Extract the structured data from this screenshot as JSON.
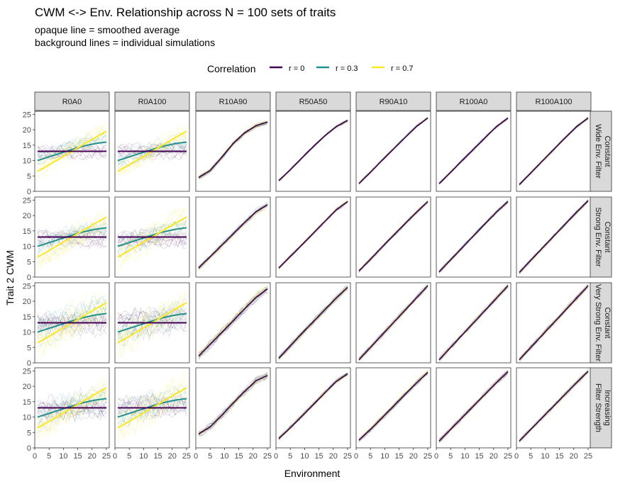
{
  "chart_data": {
    "type": "line",
    "title": "CWM <-> Env. Relationship across N = 100 sets of traits",
    "subtitle_lines": [
      "opaque line = smoothed average",
      "background lines = individual simulations"
    ],
    "xlabel": "Environment",
    "ylabel": "Trait 2 CWM",
    "xlim": [
      0,
      26
    ],
    "ylim": [
      0,
      26
    ],
    "x_ticks": [
      0,
      5,
      10,
      15,
      20,
      25
    ],
    "y_ticks": [
      0,
      5,
      10,
      15,
      20,
      25
    ],
    "legend": {
      "title": "Correlation",
      "position": "top",
      "entries": [
        {
          "label": "r = 0",
          "color": "#440154"
        },
        {
          "label": "r = 0.3",
          "color": "#21908C"
        },
        {
          "label": "r = 0.7",
          "color": "#FDE725"
        }
      ]
    },
    "columns": [
      "R0A0",
      "R0A100",
      "R10A90",
      "R50A50",
      "R90A10",
      "R100A0",
      "R100A100"
    ],
    "rows": [
      [
        "Constant",
        "Wide Env. Filter"
      ],
      [
        "Constant",
        "Strong Env. Filter"
      ],
      [
        "Constant",
        "Very Strong Env. Filter"
      ],
      [
        "Increasing",
        "Filter Strength"
      ]
    ],
    "grid": false,
    "x": [
      1,
      5,
      9,
      13,
      17,
      21,
      25
    ],
    "random_panels": {
      "r = 0": [
        13,
        13,
        13,
        13,
        13,
        13,
        13
      ],
      "r = 0.3": [
        10,
        11.2,
        12.4,
        13.6,
        14.7,
        15.5,
        16
      ],
      "r = 0.7": [
        6.5,
        8.6,
        10.8,
        13,
        15.2,
        17.4,
        19.5
      ]
    },
    "trend_panels": {
      "R10A90": [
        [
          4.5,
          6.8,
          11,
          15.5,
          19,
          21.3,
          22.5
        ],
        [
          3,
          6.6,
          10.3,
          14,
          17.7,
          21.2,
          23.5
        ],
        [
          2.2,
          6,
          9.8,
          13.6,
          17.5,
          21.2,
          24
        ],
        [
          4.5,
          6.8,
          10.5,
          14.5,
          18.3,
          21.8,
          23.5
        ]
      ],
      "R50A50": [
        [
          3.5,
          7,
          10.8,
          14.5,
          18,
          21,
          23
        ],
        [
          3,
          6.7,
          10.4,
          14.2,
          18,
          21.8,
          24.5
        ],
        [
          1.5,
          5.5,
          9.5,
          13.3,
          17.2,
          21,
          24.5
        ],
        [
          3,
          6.5,
          10.2,
          14,
          17.8,
          21.5,
          24
        ]
      ],
      "R90A10": [
        [
          2.5,
          6.2,
          10,
          13.7,
          17.4,
          21,
          23.8
        ],
        [
          2,
          5.8,
          9.7,
          13.5,
          17.3,
          21,
          24.5
        ],
        [
          1,
          5,
          9,
          13,
          17,
          21,
          25
        ],
        [
          2.5,
          6,
          9.7,
          13.5,
          17.3,
          21,
          24.5
        ]
      ],
      "R100A0": [
        [
          2.5,
          6.2,
          10,
          13.7,
          17.4,
          21,
          23.8
        ],
        [
          1.7,
          5.6,
          9.5,
          13.4,
          17.3,
          21.1,
          24.5
        ],
        [
          1,
          5,
          9,
          13,
          17,
          21,
          25
        ],
        [
          2.2,
          6,
          9.8,
          13.6,
          17.4,
          21.2,
          24.7
        ]
      ],
      "R100A100": [
        [
          2.2,
          6,
          9.8,
          13.6,
          17.4,
          21,
          23.8
        ],
        [
          1.5,
          5.5,
          9.4,
          13.3,
          17.2,
          21.1,
          24.8
        ],
        [
          1,
          5,
          9,
          13,
          17,
          21,
          25
        ],
        [
          2.2,
          6,
          9.8,
          13.6,
          17.4,
          21.2,
          24.8
        ]
      ]
    }
  }
}
